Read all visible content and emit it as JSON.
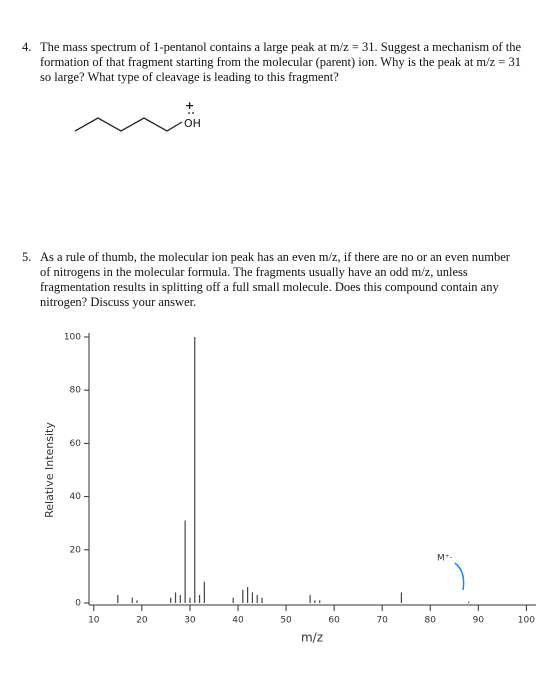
{
  "question_4": {
    "number": "4.",
    "text": "The mass spectrum of 1-pentanol contains a large peak at m/z = 31. Suggest a mechanism of the formation of that fragment starting from the molecular (parent) ion. Why is the peak at m/z = 31 so large? What type of cleavage is leading to this fragment?"
  },
  "molecule": {
    "charge": "+",
    "label": "OH"
  },
  "question_5": {
    "number": "5.",
    "text": "As a rule of thumb, the molecular ion peak has an even m/z, if there are no or an even number of nitrogens in the molecular formula. The fragments usually have an odd m/z, unless fragmentation results in splitting off a full small molecule. Does this compound contain any nitrogen? Discuss your answer."
  },
  "chart_data": {
    "type": "bar",
    "x": [
      15,
      18,
      19,
      26,
      27,
      28,
      29,
      30,
      31,
      32,
      33,
      39,
      41,
      42,
      43,
      44,
      45,
      55,
      56,
      57,
      74,
      88
    ],
    "values": [
      3,
      2,
      1,
      2,
      4,
      3,
      31,
      2,
      100,
      3,
      8,
      2,
      5,
      6,
      4,
      3,
      2,
      3,
      1,
      1,
      4,
      0.5
    ],
    "color": "#444444",
    "xlim": [
      9,
      102
    ],
    "ylim": [
      0,
      100
    ],
    "xticks": [
      10,
      20,
      30,
      40,
      50,
      60,
      70,
      80,
      90,
      100
    ],
    "yticks": [
      0,
      20,
      40,
      60,
      80,
      100
    ],
    "xlabel": "m/z",
    "ylabel": "Relative Intensity",
    "annotation": "M⁺·"
  }
}
